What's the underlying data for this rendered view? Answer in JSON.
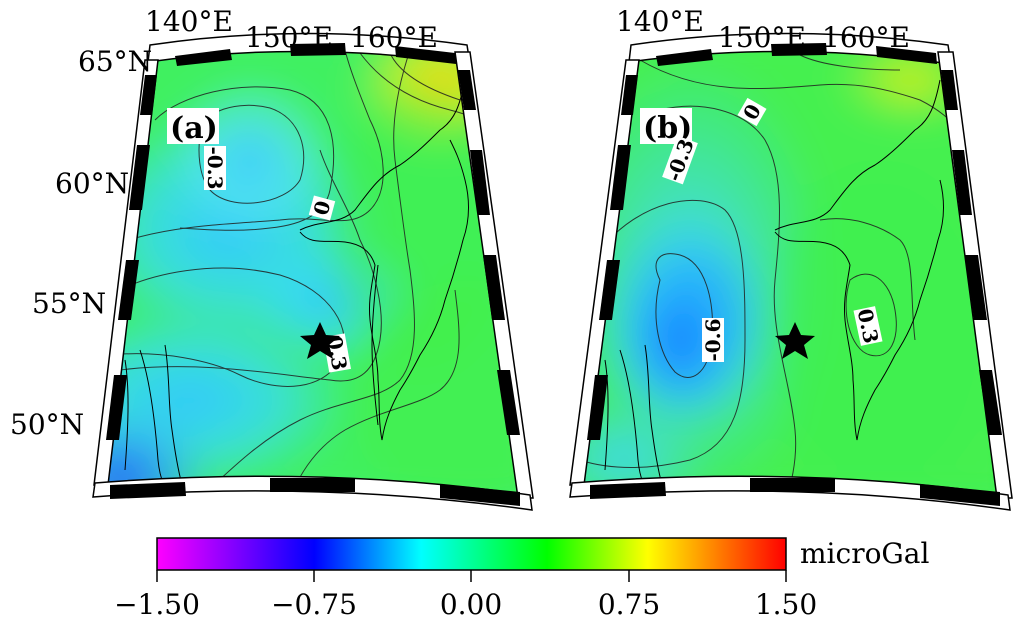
{
  "maps": [
    {
      "panel_label": "(a)",
      "contour_labels": [
        "-0.3",
        "0",
        "0.3"
      ],
      "marker": "star-epicenter"
    },
    {
      "panel_label": "(b)",
      "contour_labels": [
        "0",
        "-0.3",
        "-0.6",
        "0.3"
      ],
      "marker": "star-epicenter"
    }
  ],
  "top_axis_labels": [
    "140°E",
    "150°E",
    "160°E"
  ],
  "left_axis_labels": [
    "65°N",
    "60°N",
    "55°N",
    "50°N"
  ],
  "colorbar": {
    "unit": "microGal",
    "tick_labels": [
      "−1.50",
      "−0.75",
      "0.00",
      "0.75",
      "1.50"
    ],
    "range": [
      -1.5,
      1.5
    ],
    "colors": [
      "#ff00ff",
      "#0000ff",
      "#00ffff",
      "#00ff00",
      "#ffff00",
      "#ff0000"
    ]
  }
}
